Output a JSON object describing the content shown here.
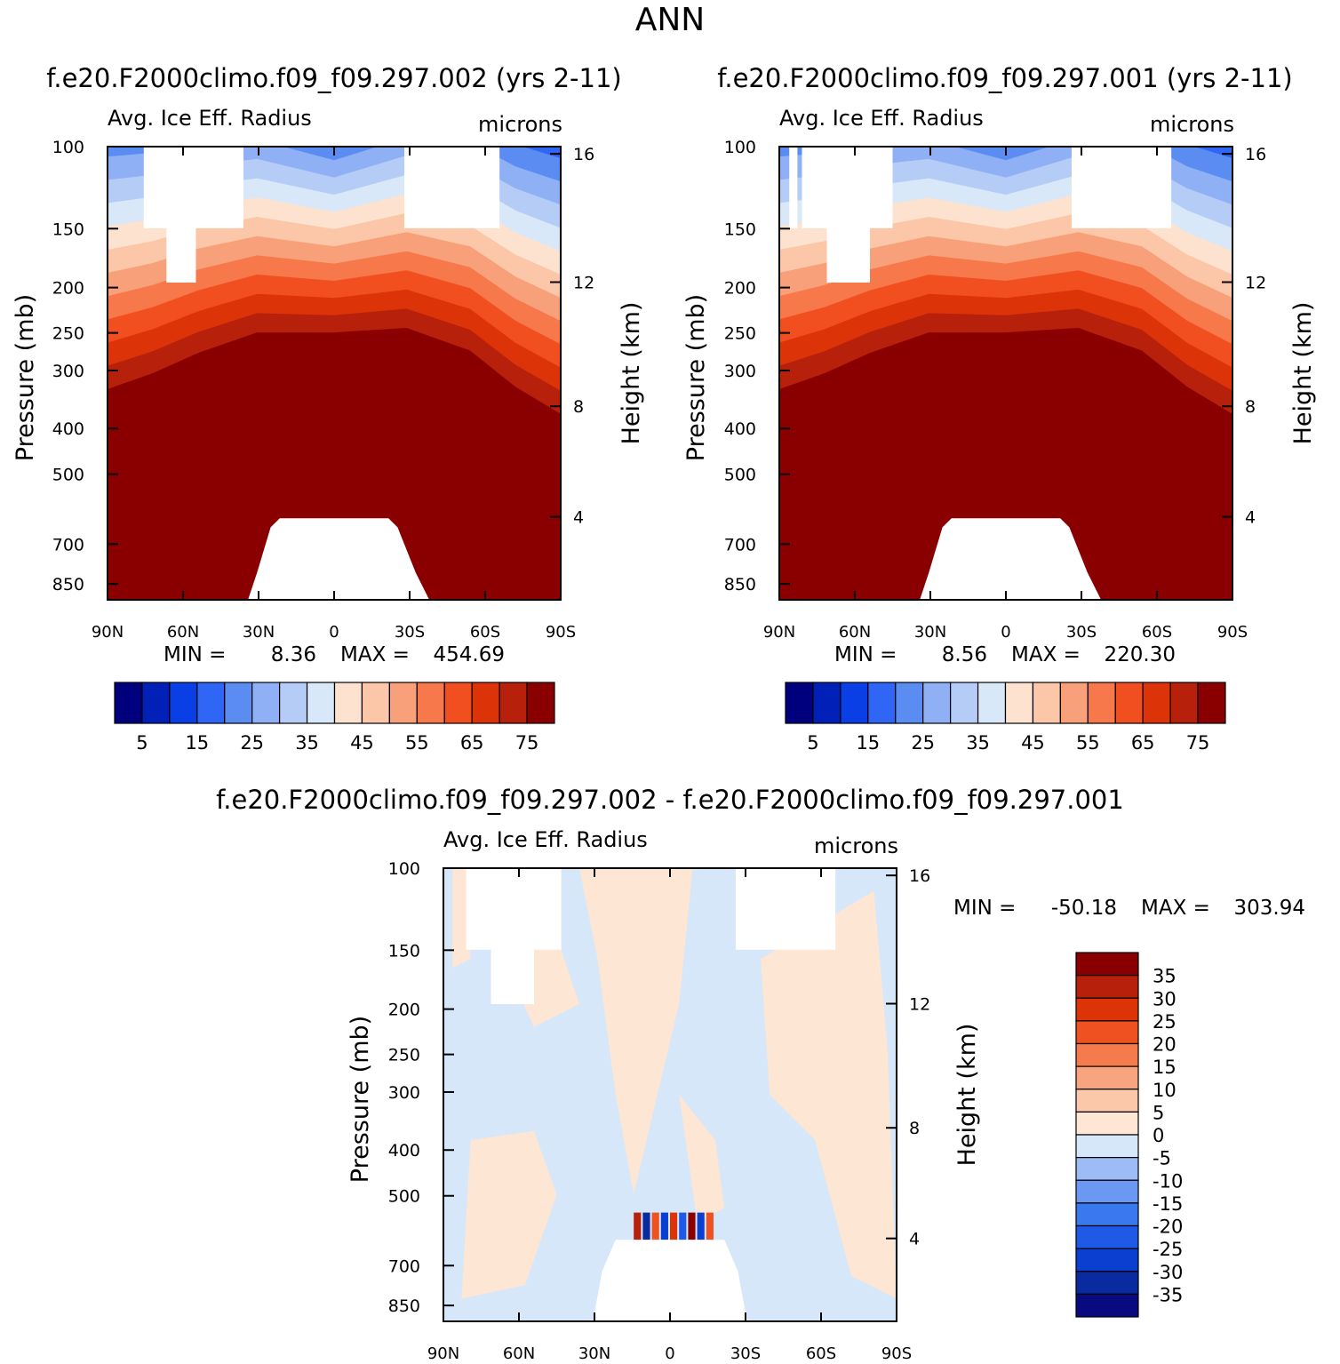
{
  "figure": {
    "title": "ANN"
  },
  "colors": {
    "absolute_scale": [
      "#00007f",
      "#0020b8",
      "#0a3fe6",
      "#2f66f5",
      "#5a8cf2",
      "#8fb0f5",
      "#b5ccf7",
      "#d8e8f8",
      "#fde3cf",
      "#fbc7a8",
      "#f7a07a",
      "#f6784b",
      "#f24f20",
      "#dd3309",
      "#b7200b",
      "#8a0000"
    ],
    "difference_scale": [
      "#0a0a80",
      "#0a2aa0",
      "#0a3fd0",
      "#1e5ae6",
      "#3a78f0",
      "#6b98f2",
      "#9dbbf5",
      "#d6e7f9",
      "#fde6d3",
      "#fbc8aa",
      "#f8a47e",
      "#f57a4e",
      "#ef5121",
      "#dd3309",
      "#b7200b",
      "#8a0000"
    ]
  },
  "chart_data": [
    {
      "type": "heatmap",
      "panel_id": "left",
      "title": "f.e20.F2000climo.f09_f09.297.002 (yrs 2-11)",
      "left_string": "Avg. Ice Eff. Radius",
      "right_string": "microns",
      "xlabel": "",
      "ylabel": "Pressure (mb)",
      "ylabel_right": "Height (km)",
      "x_ticks": [
        "90N",
        "60N",
        "30N",
        "0",
        "30S",
        "60S",
        "90S"
      ],
      "y_ticks": [
        "100",
        "150",
        "200",
        "250",
        "300",
        "400",
        "500",
        "700",
        "850"
      ],
      "y_right_ticks": [
        "16",
        "12",
        "8",
        "4"
      ],
      "stats": {
        "min_label": "MIN =",
        "min": "8.36",
        "max_label": "MAX =",
        "max": "454.69"
      },
      "colorbar_levels": [
        0,
        5,
        10,
        15,
        20,
        25,
        30,
        35,
        40,
        45,
        50,
        55,
        60,
        65,
        70,
        75
      ],
      "colorbar_tick_labels": [
        "5",
        "15",
        "25",
        "35",
        "45",
        "55",
        "65",
        "75"
      ]
    },
    {
      "type": "heatmap",
      "panel_id": "right",
      "title": "f.e20.F2000climo.f09_f09.297.001 (yrs 2-11)",
      "left_string": "Avg. Ice Eff. Radius",
      "right_string": "microns",
      "xlabel": "",
      "ylabel": "Pressure (mb)",
      "ylabel_right": "Height (km)",
      "x_ticks": [
        "90N",
        "60N",
        "30N",
        "0",
        "30S",
        "60S",
        "90S"
      ],
      "y_ticks": [
        "100",
        "150",
        "200",
        "250",
        "300",
        "400",
        "500",
        "700",
        "850"
      ],
      "y_right_ticks": [
        "16",
        "12",
        "8",
        "4"
      ],
      "stats": {
        "min_label": "MIN =",
        "min": "8.56",
        "max_label": "MAX =",
        "max": "220.30"
      },
      "colorbar_levels": [
        0,
        5,
        10,
        15,
        20,
        25,
        30,
        35,
        40,
        45,
        50,
        55,
        60,
        65,
        70,
        75
      ],
      "colorbar_tick_labels": [
        "5",
        "15",
        "25",
        "35",
        "45",
        "55",
        "65",
        "75"
      ]
    },
    {
      "type": "heatmap",
      "panel_id": "diff",
      "title": "f.e20.F2000climo.f09_f09.297.002 - f.e20.F2000climo.f09_f09.297.001",
      "left_string": "Avg. Ice Eff. Radius",
      "right_string": "microns",
      "xlabel": "",
      "ylabel": "Pressure (mb)",
      "ylabel_right": "Height (km)",
      "x_ticks": [
        "90N",
        "60N",
        "30N",
        "0",
        "30S",
        "60S",
        "90S"
      ],
      "y_ticks": [
        "100",
        "150",
        "200",
        "250",
        "300",
        "400",
        "500",
        "700",
        "850"
      ],
      "y_right_ticks": [
        "16",
        "12",
        "8",
        "4"
      ],
      "stats": {
        "min_label": "MIN =",
        "min": "-50.18",
        "max_label": "MAX =",
        "max": "303.94"
      },
      "colorbar_levels": [
        -35,
        -30,
        -25,
        -20,
        -15,
        -10,
        -5,
        0,
        5,
        10,
        15,
        20,
        25,
        30,
        35
      ],
      "colorbar_tick_labels": [
        "35",
        "30",
        "25",
        "20",
        "15",
        "10",
        "5",
        "0",
        "-5",
        "-10",
        "-15",
        "-20",
        "-25",
        "-30",
        "-35"
      ]
    }
  ]
}
